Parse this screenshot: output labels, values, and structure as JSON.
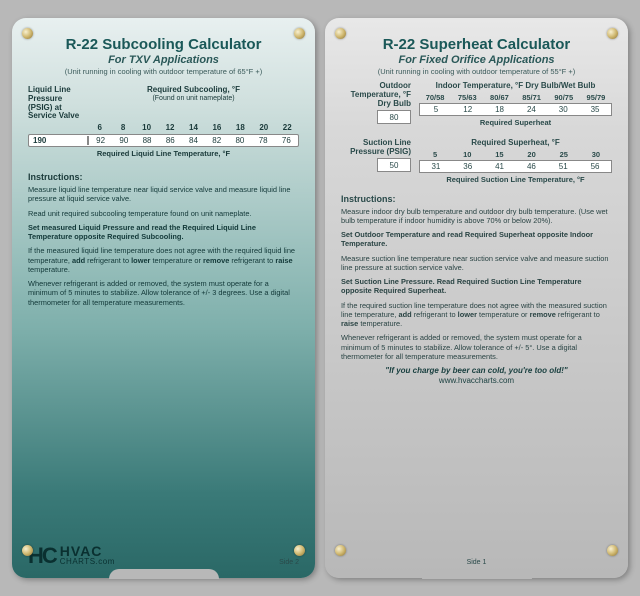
{
  "left": {
    "title": "R-22 Subcooling Calculator",
    "subtitle": "For TXV Applications",
    "note": "(Unit running in cooling with outdoor temperature of 65°F +)",
    "liquid_label": "Liquid Line Pressure (PSIG) at Service Valve",
    "subcool_label": "Required Subcooling, °F",
    "subcool_sub": "(Found on unit nameplate)",
    "headers": [
      "6",
      "8",
      "10",
      "12",
      "14",
      "16",
      "18",
      "20",
      "22"
    ],
    "pressure_value": "190",
    "values": [
      "92",
      "90",
      "88",
      "86",
      "84",
      "82",
      "80",
      "78",
      "76"
    ],
    "val_footer": "Required Liquid Line Temperature, °F",
    "instructions_title": "Instructions:",
    "p1": "Measure liquid line temperature near liquid service valve and measure liquid line pressure at liquid service valve.",
    "p2": "Read unit required subcooling temperature found on unit nameplate.",
    "p3": "Set measured Liquid Pressure and read the Required Liquid Line Temperature opposite Required Subcooling.",
    "p4a": "If the measured liquid line temperature does not agree with the required liquid line temperature, ",
    "p4b": "add",
    "p4c": " refrigerant to ",
    "p4d": "lower",
    "p4e": " temperature or ",
    "p4f": "remove",
    "p4g": " refrigerant to ",
    "p4h": "raise",
    "p4i": " temperature.",
    "p5": "Whenever refrigerant is added or removed, the system must operate for a minimum of 5 minutes to stabilize. Allow tolerance of +/- 3 degrees. Use a digital thermometer for all temperature measurements.",
    "logo_mark": "HC",
    "logo_l1": "HVAC",
    "logo_l2": "CHARTS.com",
    "side": "Side 2"
  },
  "right": {
    "title": "R-22 Superheat Calculator",
    "subtitle": "For Fixed Orifice Applications",
    "note": "(Unit running in cooling with outdoor temperature of 55°F +)",
    "outdoor_label": "Outdoor Temperature, °F Dry Bulb",
    "outdoor_value": "80",
    "indoor_label": "Indoor Temperature, °F Dry Bulb/Wet Bulb",
    "indoor_headers": [
      "70/58",
      "75/63",
      "80/67",
      "85/71",
      "90/75",
      "95/79"
    ],
    "indoor_values": [
      "5",
      "12",
      "18",
      "24",
      "30",
      "35"
    ],
    "req_superheat": "Required Superheat",
    "suction_label": "Suction Line Pressure (PSIG)",
    "suction_value": "50",
    "superheat_label": "Required Superheat, °F",
    "superheat_headers": [
      "5",
      "10",
      "15",
      "20",
      "25",
      "30"
    ],
    "superheat_values": [
      "31",
      "36",
      "41",
      "46",
      "51",
      "56"
    ],
    "val_footer": "Required Suction Line Temperature, °F",
    "instructions_title": "Instructions:",
    "p1": "Measure indoor dry bulb temperature and outdoor dry bulb temperature. (Use wet bulb temperature if indoor humidity is above 70% or below 20%).",
    "p2": "Set Outdoor Temperature and read Required Superheat opposite Indoor Temperature.",
    "p3": "Measure suction line temperature near suction service valve and measure suction line pressure at suction service valve.",
    "p4": "Set Suction Line Pressure. Read Required Suction Line Temperature opposite Required Superheat.",
    "p5a": "If the required suction line temperature does not agree with the measured suction line temperature, ",
    "p5b": "add",
    "p5c": " refrigerant to ",
    "p5d": "lower",
    "p5e": " temperature or ",
    "p5f": "remove",
    "p5g": " refrigerant to ",
    "p5h": "raise",
    "p5i": " temperature.",
    "p6": "Whenever refrigerant is added or removed, the system must operate for a minimum of 5 minutes to stabilize. Allow tolerance of +/- 5°. Use a digital thermometer for all temperature measurements.",
    "quote": "\"If you charge by beer can cold, you're too old!\"",
    "url": "www.hvaccharts.com",
    "side": "Side 1"
  }
}
